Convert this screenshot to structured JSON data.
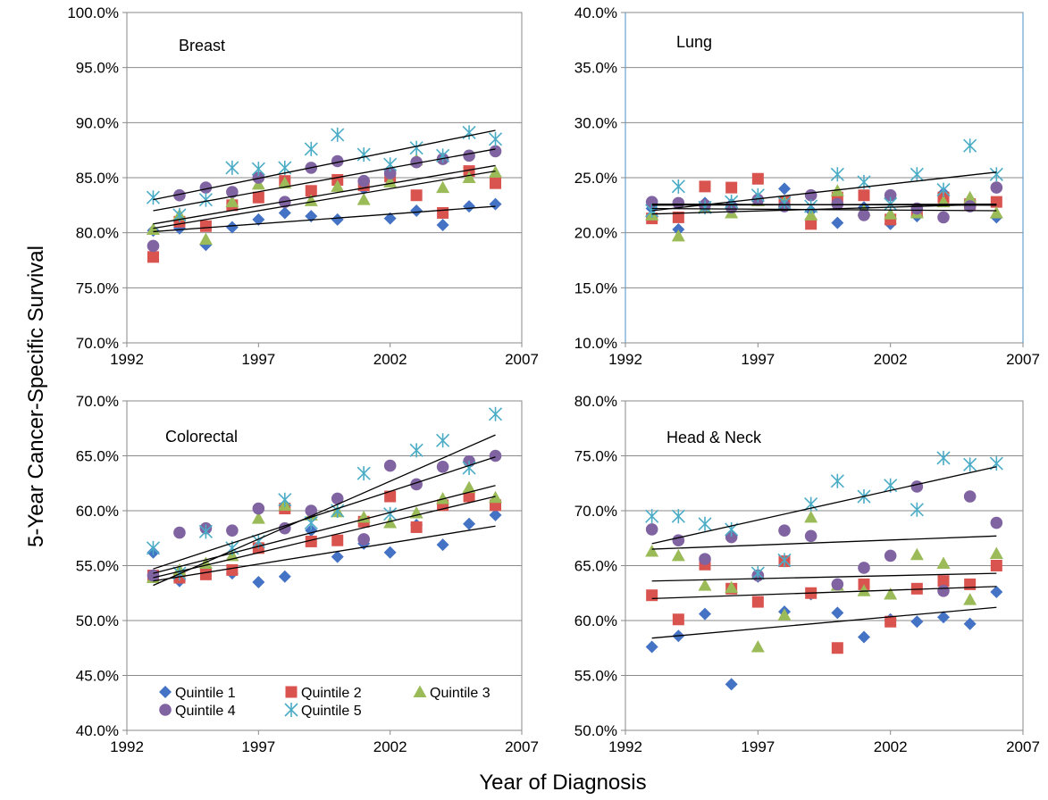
{
  "figure": {
    "ylabel": "5-Year Cancer-Specific Survival",
    "xlabel": "Year of Diagnosis"
  },
  "legend": [
    {
      "name": "Quintile 1",
      "color": "#4472C4",
      "marker": "diamond"
    },
    {
      "name": "Quintile 2",
      "color": "#D9534F",
      "marker": "square"
    },
    {
      "name": "Quintile 3",
      "color": "#9BBB59",
      "marker": "triangle"
    },
    {
      "name": "Quintile 4",
      "color": "#8064A2",
      "marker": "circle"
    },
    {
      "name": "Quintile 5",
      "color": "#4BACC6",
      "marker": "star"
    }
  ],
  "chart_data": [
    {
      "type": "scatter",
      "title": "Breast",
      "xlim": [
        1992,
        2007
      ],
      "xticks": [
        "1992",
        "1997",
        "2002",
        "2007"
      ],
      "ylim": [
        70,
        100
      ],
      "yticks": [
        "70.0%",
        "75.0%",
        "80.0%",
        "85.0%",
        "90.0%",
        "95.0%",
        "100.0%"
      ],
      "x": [
        1993,
        1994,
        1995,
        1996,
        1997,
        1998,
        1999,
        2000,
        2001,
        2002,
        2003,
        2004,
        2005,
        2006
      ],
      "series": [
        {
          "name": "Quintile 1",
          "values": [
            80.2,
            80.4,
            78.9,
            80.5,
            81.2,
            81.8,
            81.5,
            81.2,
            84.0,
            81.3,
            82.0,
            80.7,
            82.4,
            82.6
          ]
        },
        {
          "name": "Quintile 2",
          "values": [
            77.8,
            81.0,
            80.6,
            82.5,
            83.2,
            84.7,
            83.8,
            84.8,
            84.3,
            85.1,
            83.4,
            81.8,
            85.6,
            84.5
          ]
        },
        {
          "name": "Quintile 3",
          "values": [
            80.3,
            81.6,
            79.4,
            82.8,
            84.4,
            84.5,
            82.9,
            84.2,
            83.0,
            84.6,
            86.6,
            84.1,
            85.0,
            85.5
          ]
        },
        {
          "name": "Quintile 4",
          "values": [
            78.8,
            83.4,
            84.1,
            83.7,
            85.0,
            82.8,
            85.9,
            86.5,
            84.7,
            85.4,
            86.4,
            86.7,
            87.0,
            87.4
          ]
        },
        {
          "name": "Quintile 5",
          "values": [
            83.2,
            81.6,
            83.0,
            85.9,
            85.8,
            85.9,
            87.6,
            88.9,
            87.1,
            86.2,
            87.7,
            87.0,
            89.1,
            88.5
          ]
        }
      ],
      "trendlines": [
        {
          "series": "Quintile 1",
          "y_start": 80.1,
          "y_end": 82.4
        },
        {
          "series": "Quintile 2",
          "y_start": 80.4,
          "y_end": 85.6
        },
        {
          "series": "Quintile 3",
          "y_start": 80.8,
          "y_end": 86.1
        },
        {
          "series": "Quintile 4",
          "y_start": 82.0,
          "y_end": 87.6
        },
        {
          "series": "Quintile 5",
          "y_start": 83.0,
          "y_end": 89.3
        }
      ]
    },
    {
      "type": "scatter",
      "title": "Lung",
      "xlim": [
        1992,
        2007
      ],
      "xticks": [
        "1992",
        "1997",
        "2002",
        "2007"
      ],
      "ylim": [
        10,
        40
      ],
      "yticks": [
        "10.0%",
        "15.0%",
        "20.0%",
        "25.0%",
        "30.0%",
        "35.0%",
        "40.0%"
      ],
      "x": [
        1993,
        1994,
        1995,
        1996,
        1997,
        1998,
        1999,
        2000,
        2001,
        2002,
        2003,
        2004,
        2005,
        2006
      ],
      "series": [
        {
          "name": "Quintile 1",
          "values": [
            22.2,
            20.3,
            22.7,
            22.6,
            23.1,
            24.0,
            22.0,
            20.9,
            22.3,
            20.8,
            21.5,
            23.6,
            22.9,
            21.4
          ]
        },
        {
          "name": "Quintile 2",
          "values": [
            21.3,
            21.4,
            24.2,
            24.1,
            24.9,
            22.8,
            20.8,
            23.2,
            23.4,
            21.2,
            21.9,
            23.2,
            22.6,
            22.8
          ]
        },
        {
          "name": "Quintile 3",
          "values": [
            21.6,
            19.7,
            22.3,
            21.8,
            22.9,
            22.8,
            21.6,
            23.8,
            22.0,
            21.7,
            21.8,
            22.8,
            23.2,
            21.8
          ]
        },
        {
          "name": "Quintile 4",
          "values": [
            22.8,
            22.7,
            22.5,
            22.3,
            23.0,
            22.4,
            23.4,
            22.6,
            21.6,
            23.4,
            22.2,
            21.4,
            22.4,
            24.1
          ]
        },
        {
          "name": "Quintile 5",
          "values": [
            22.0,
            24.2,
            22.3,
            22.8,
            23.4,
            22.7,
            22.4,
            25.3,
            24.6,
            22.6,
            25.3,
            23.9,
            27.9,
            25.3
          ]
        }
      ],
      "trendlines": [
        {
          "series": "Quintile 1",
          "y_start": 22.2,
          "y_end": 22.0
        },
        {
          "series": "Quintile 2",
          "y_start": 22.6,
          "y_end": 22.5
        },
        {
          "series": "Quintile 3",
          "y_start": 21.7,
          "y_end": 22.6
        },
        {
          "series": "Quintile 4",
          "y_start": 22.5,
          "y_end": 22.6
        },
        {
          "series": "Quintile 5",
          "y_start": 22.0,
          "y_end": 25.5
        }
      ]
    },
    {
      "type": "scatter",
      "title": "Colorectal",
      "xlim": [
        1992,
        2007
      ],
      "xticks": [
        "1992",
        "1997",
        "2002",
        "2007"
      ],
      "ylim": [
        40,
        70
      ],
      "yticks": [
        "40.0%",
        "45.0%",
        "50.0%",
        "55.0%",
        "60.0%",
        "65.0%",
        "70.0%"
      ],
      "x": [
        1993,
        1994,
        1995,
        1996,
        1997,
        1998,
        1999,
        2000,
        2001,
        2002,
        2003,
        2004,
        2005,
        2006
      ],
      "series": [
        {
          "name": "Quintile 1",
          "values": [
            56.2,
            53.6,
            54.6,
            54.3,
            53.5,
            54.0,
            58.2,
            55.8,
            57.0,
            56.2,
            58.7,
            56.9,
            58.8,
            59.6
          ]
        },
        {
          "name": "Quintile 2",
          "values": [
            54.1,
            53.9,
            54.2,
            54.6,
            56.6,
            60.2,
            57.2,
            57.3,
            59.0,
            61.3,
            58.5,
            60.5,
            61.3,
            60.5
          ]
        },
        {
          "name": "Quintile 3",
          "values": [
            53.9,
            54.6,
            55.2,
            55.9,
            59.3,
            60.5,
            59.6,
            59.9,
            59.4,
            58.9,
            59.8,
            61.1,
            62.1,
            61.2
          ]
        },
        {
          "name": "Quintile 4",
          "values": [
            54.1,
            58.0,
            58.4,
            58.2,
            60.2,
            58.4,
            60.0,
            61.1,
            57.4,
            64.1,
            62.4,
            64.0,
            64.5,
            65.0
          ]
        },
        {
          "name": "Quintile 5",
          "values": [
            56.6,
            54.3,
            58.1,
            56.6,
            57.2,
            61.0,
            58.9,
            60.0,
            63.4,
            59.7,
            65.5,
            66.4,
            63.9,
            68.8
          ]
        }
      ],
      "trendlines": [
        {
          "series": "Quintile 1",
          "y_start": 53.6,
          "y_end": 58.6
        },
        {
          "series": "Quintile 2",
          "y_start": 53.9,
          "y_end": 61.3
        },
        {
          "series": "Quintile 3",
          "y_start": 54.3,
          "y_end": 62.3
        },
        {
          "series": "Quintile 4",
          "y_start": 54.7,
          "y_end": 64.9
        },
        {
          "series": "Quintile 5",
          "y_start": 53.2,
          "y_end": 66.9
        }
      ]
    },
    {
      "type": "scatter",
      "title": "Head & Neck",
      "xlim": [
        1992,
        2007
      ],
      "xticks": [
        "1992",
        "1997",
        "2002",
        "2007"
      ],
      "ylim": [
        50,
        80
      ],
      "yticks": [
        "50.0%",
        "55.0%",
        "60.0%",
        "65.0%",
        "70.0%",
        "75.0%",
        "80.0%"
      ],
      "x": [
        1993,
        1994,
        1995,
        1996,
        1997,
        1998,
        1999,
        2000,
        2001,
        2002,
        2003,
        2004,
        2005,
        2006
      ],
      "series": [
        {
          "name": "Quintile 1",
          "values": [
            57.6,
            58.6,
            60.6,
            54.2,
            64.0,
            60.8,
            62.4,
            60.7,
            58.5,
            60.1,
            59.9,
            60.3,
            59.7,
            62.6
          ]
        },
        {
          "name": "Quintile 2",
          "values": [
            62.3,
            60.1,
            65.1,
            62.9,
            61.7,
            65.4,
            62.5,
            57.5,
            63.3,
            59.9,
            62.9,
            63.6,
            63.3,
            65.0
          ]
        },
        {
          "name": "Quintile 3",
          "values": [
            66.3,
            65.9,
            63.2,
            63.0,
            57.6,
            60.5,
            69.4,
            63.2,
            62.7,
            62.4,
            66.0,
            65.2,
            61.9,
            66.1
          ]
        },
        {
          "name": "Quintile 4",
          "values": [
            68.3,
            67.3,
            65.6,
            67.6,
            64.1,
            68.2,
            67.7,
            63.3,
            64.8,
            65.9,
            72.2,
            62.7,
            71.3,
            68.9
          ]
        },
        {
          "name": "Quintile 5",
          "values": [
            69.5,
            69.5,
            68.8,
            68.3,
            64.3,
            65.5,
            70.6,
            72.7,
            71.3,
            72.3,
            70.1,
            74.8,
            74.2,
            74.3
          ]
        }
      ],
      "trendlines": [
        {
          "series": "Quintile 1",
          "y_start": 58.4,
          "y_end": 61.2
        },
        {
          "series": "Quintile 2",
          "y_start": 62.0,
          "y_end": 63.1
        },
        {
          "series": "Quintile 3",
          "y_start": 63.6,
          "y_end": 64.3
        },
        {
          "series": "Quintile 4",
          "y_start": 66.5,
          "y_end": 67.7
        },
        {
          "series": "Quintile 5",
          "y_start": 67.0,
          "y_end": 74.0
        }
      ]
    }
  ]
}
